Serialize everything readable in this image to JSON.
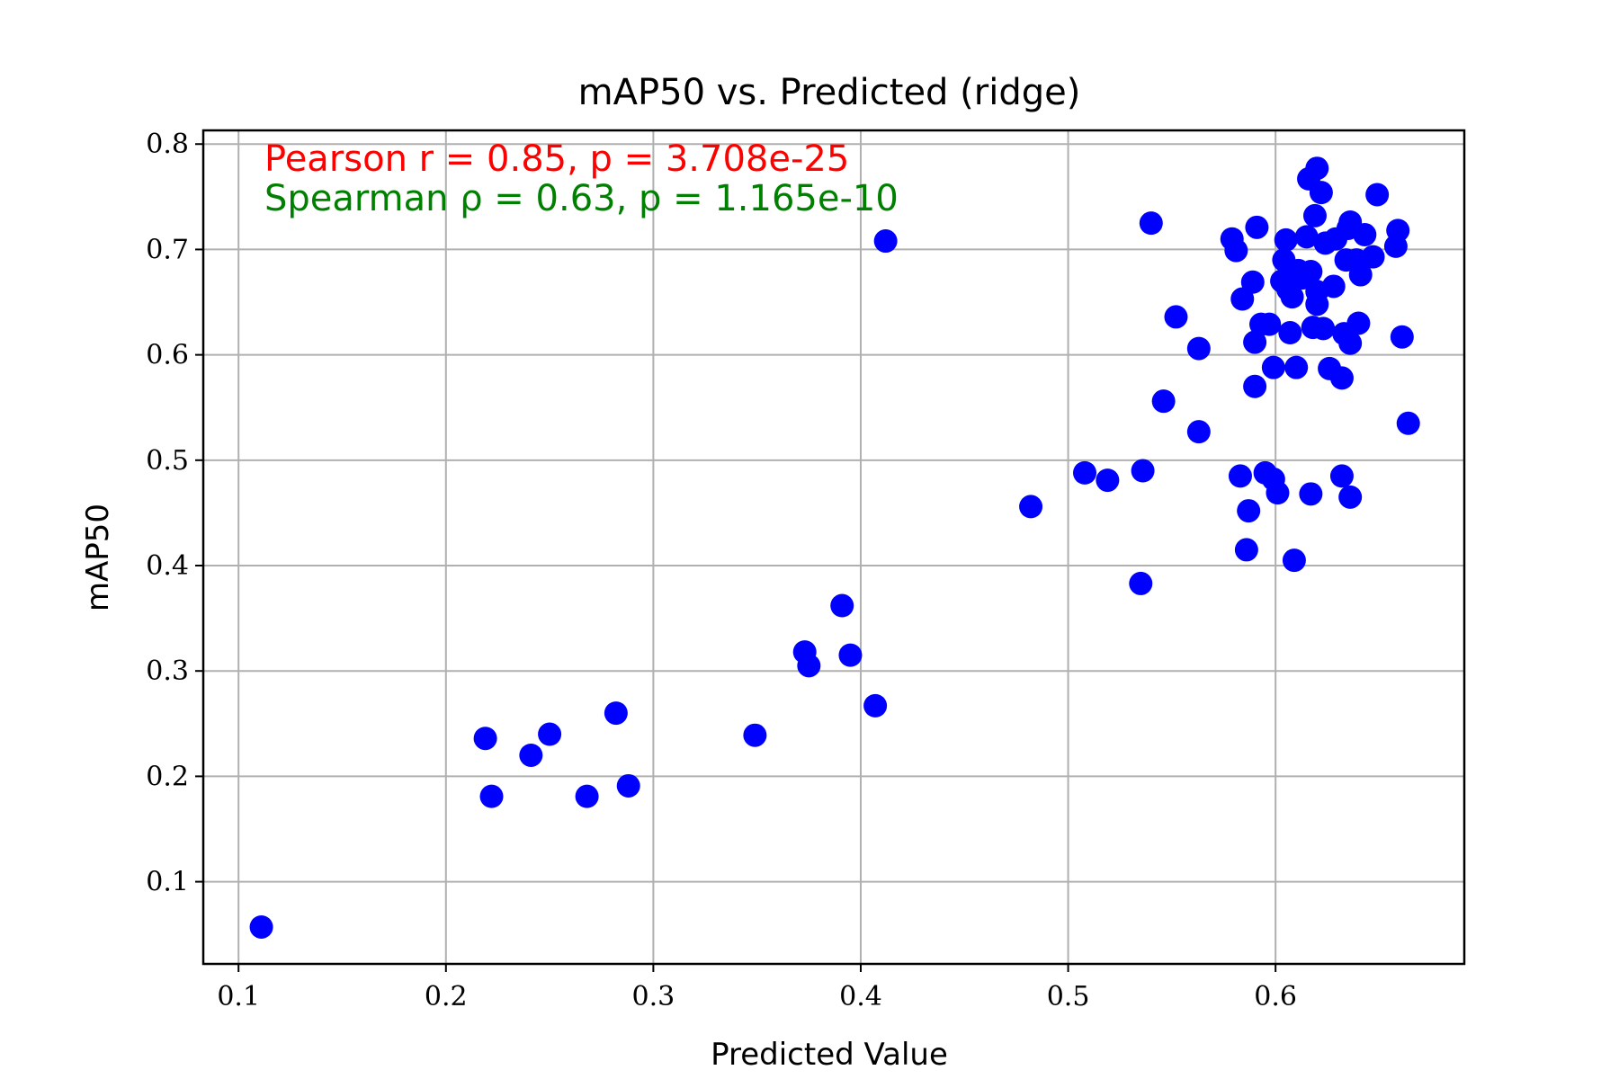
{
  "chart_data": {
    "type": "scatter",
    "title": "mAP50 vs. Predicted (ridge)",
    "xlabel": "Predicted Value",
    "ylabel": "mAP50",
    "xlim": [
      0.083,
      0.691
    ],
    "ylim": [
      0.022,
      0.813
    ],
    "xticks": [
      0.1,
      0.2,
      0.3,
      0.4,
      0.5,
      0.6
    ],
    "xtick_labels": [
      "0.1",
      "0.2",
      "0.3",
      "0.4",
      "0.5",
      "0.6"
    ],
    "yticks": [
      0.1,
      0.2,
      0.3,
      0.4,
      0.5,
      0.6,
      0.7,
      0.8
    ],
    "ytick_labels": [
      "0.1",
      "0.2",
      "0.3",
      "0.4",
      "0.5",
      "0.6",
      "0.7",
      "0.8"
    ],
    "grid": true,
    "marker_color": "#0000ff",
    "annotations": [
      {
        "text": "Pearson r = 0.85, p = 3.708e-25",
        "color": "#ff0000",
        "position": "top-left"
      },
      {
        "text": "Spearman ρ = 0.63, p = 1.165e-10",
        "color": "#008000",
        "position": "top-left"
      }
    ],
    "points": [
      [
        0.111,
        0.057
      ],
      [
        0.219,
        0.236
      ],
      [
        0.222,
        0.181
      ],
      [
        0.241,
        0.22
      ],
      [
        0.25,
        0.24
      ],
      [
        0.268,
        0.181
      ],
      [
        0.282,
        0.26
      ],
      [
        0.288,
        0.191
      ],
      [
        0.349,
        0.239
      ],
      [
        0.373,
        0.318
      ],
      [
        0.375,
        0.305
      ],
      [
        0.391,
        0.362
      ],
      [
        0.395,
        0.315
      ],
      [
        0.407,
        0.267
      ],
      [
        0.412,
        0.708
      ],
      [
        0.482,
        0.456
      ],
      [
        0.508,
        0.488
      ],
      [
        0.519,
        0.481
      ],
      [
        0.535,
        0.383
      ],
      [
        0.536,
        0.49
      ],
      [
        0.54,
        0.725
      ],
      [
        0.546,
        0.556
      ],
      [
        0.552,
        0.636
      ],
      [
        0.563,
        0.606
      ],
      [
        0.563,
        0.527
      ],
      [
        0.579,
        0.71
      ],
      [
        0.581,
        0.699
      ],
      [
        0.583,
        0.485
      ],
      [
        0.584,
        0.653
      ],
      [
        0.586,
        0.415
      ],
      [
        0.587,
        0.452
      ],
      [
        0.589,
        0.669
      ],
      [
        0.59,
        0.57
      ],
      [
        0.59,
        0.612
      ],
      [
        0.591,
        0.721
      ],
      [
        0.593,
        0.629
      ],
      [
        0.595,
        0.488
      ],
      [
        0.597,
        0.629
      ],
      [
        0.599,
        0.482
      ],
      [
        0.599,
        0.588
      ],
      [
        0.601,
        0.469
      ],
      [
        0.603,
        0.67
      ],
      [
        0.604,
        0.69
      ],
      [
        0.605,
        0.709
      ],
      [
        0.606,
        0.662
      ],
      [
        0.607,
        0.68
      ],
      [
        0.607,
        0.621
      ],
      [
        0.608,
        0.655
      ],
      [
        0.609,
        0.405
      ],
      [
        0.61,
        0.588
      ],
      [
        0.611,
        0.68
      ],
      [
        0.613,
        0.673
      ],
      [
        0.615,
        0.712
      ],
      [
        0.616,
        0.767
      ],
      [
        0.617,
        0.679
      ],
      [
        0.617,
        0.468
      ],
      [
        0.618,
        0.626
      ],
      [
        0.619,
        0.732
      ],
      [
        0.62,
        0.777
      ],
      [
        0.62,
        0.66
      ],
      [
        0.62,
        0.648
      ],
      [
        0.622,
        0.754
      ],
      [
        0.623,
        0.625
      ],
      [
        0.624,
        0.706
      ],
      [
        0.626,
        0.587
      ],
      [
        0.628,
        0.665
      ],
      [
        0.629,
        0.71
      ],
      [
        0.632,
        0.578
      ],
      [
        0.632,
        0.485
      ],
      [
        0.633,
        0.62
      ],
      [
        0.634,
        0.69
      ],
      [
        0.635,
        0.72
      ],
      [
        0.636,
        0.726
      ],
      [
        0.636,
        0.611
      ],
      [
        0.636,
        0.465
      ],
      [
        0.639,
        0.69
      ],
      [
        0.64,
        0.63
      ],
      [
        0.641,
        0.676
      ],
      [
        0.643,
        0.714
      ],
      [
        0.647,
        0.693
      ],
      [
        0.649,
        0.752
      ],
      [
        0.658,
        0.703
      ],
      [
        0.659,
        0.718
      ],
      [
        0.661,
        0.617
      ],
      [
        0.664,
        0.535
      ]
    ]
  }
}
